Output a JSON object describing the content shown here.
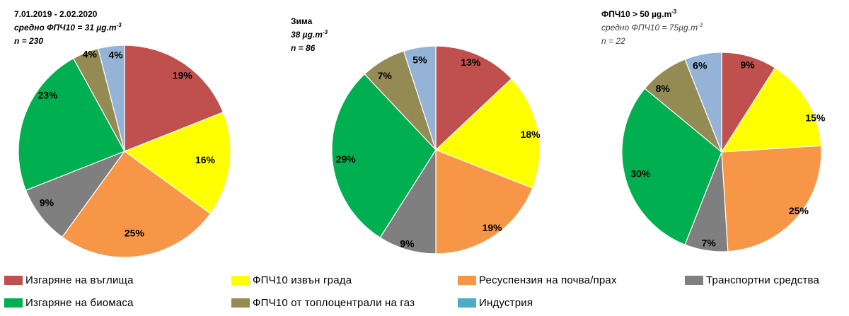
{
  "colors": {
    "coal": "#C0504D",
    "outside_city": "#FFFF00",
    "soil": "#F79646",
    "transport": "#7F7F7F",
    "biomass": "#00B050",
    "gas_heating": "#948A54",
    "industry": "#95B3D7",
    "industry_legend": "#4BACC6"
  },
  "legend": [
    {
      "key": "coal",
      "label": "Изгаряне на въглища"
    },
    {
      "key": "outside_city",
      "label": "ФПЧ10 извън града"
    },
    {
      "key": "soil",
      "label": "Ресуспензия на почва/прах"
    },
    {
      "key": "transport",
      "label": "Транспортни средства"
    },
    {
      "key": "biomass",
      "label": "Изгаряне на биомаса"
    },
    {
      "key": "gas_heating",
      "label": "ФПЧ10 от топлоцентрали на газ"
    },
    {
      "key": "industry_legend",
      "label": "Индустрия"
    }
  ],
  "chart_data": [
    {
      "type": "pie",
      "title_lines": [
        {
          "text": "7.01.2019 - 2.02.2020",
          "style": "bold",
          "sup": ""
        },
        {
          "text": "средно ФПЧ10 = 31 µg.m",
          "style": "bold-italic",
          "sup": "-3"
        },
        {
          "text": "n = 230",
          "style": "bold-italic",
          "sup": ""
        }
      ],
      "slices": [
        {
          "key": "coal",
          "value": 19,
          "label": "19%"
        },
        {
          "key": "outside_city",
          "value": 16,
          "label": "16%"
        },
        {
          "key": "soil",
          "value": 25,
          "label": "25%"
        },
        {
          "key": "transport",
          "value": 9,
          "label": "9%"
        },
        {
          "key": "biomass",
          "value": 23,
          "label": "23%"
        },
        {
          "key": "gas_heating",
          "value": 4,
          "label": "4%"
        },
        {
          "key": "industry",
          "value": 4,
          "label": "4%"
        }
      ]
    },
    {
      "type": "pie",
      "title_lines": [
        {
          "text": "Зима",
          "style": "bold",
          "sup": ""
        },
        {
          "text": "38 µg.m",
          "style": "bold-italic",
          "sup": "-3"
        },
        {
          "text": "n = 86",
          "style": "bold-italic",
          "sup": ""
        }
      ],
      "slices": [
        {
          "key": "coal",
          "value": 13,
          "label": "13%"
        },
        {
          "key": "outside_city",
          "value": 18,
          "label": "18%"
        },
        {
          "key": "soil",
          "value": 19,
          "label": "19%"
        },
        {
          "key": "transport",
          "value": 9,
          "label": "9%"
        },
        {
          "key": "biomass",
          "value": 29,
          "label": "29%"
        },
        {
          "key": "gas_heating",
          "value": 7,
          "label": "7%"
        },
        {
          "key": "industry",
          "value": 5,
          "label": "5%"
        }
      ]
    },
    {
      "type": "pie",
      "title_lines": [
        {
          "text": "ФПЧ10 > 50 µg.m",
          "style": "bold",
          "sup": "-3"
        },
        {
          "text": "средно ФПЧ10 = 75µg.m",
          "style": "gray-italic",
          "sup": "-3"
        },
        {
          "text": "n = 22",
          "style": "gray-italic",
          "sup": ""
        }
      ],
      "slices": [
        {
          "key": "coal",
          "value": 9,
          "label": "9%"
        },
        {
          "key": "outside_city",
          "value": 15,
          "label": "15%"
        },
        {
          "key": "soil",
          "value": 25,
          "label": "25%"
        },
        {
          "key": "transport",
          "value": 7,
          "label": "7%"
        },
        {
          "key": "biomass",
          "value": 30,
          "label": "30%"
        },
        {
          "key": "gas_heating",
          "value": 8,
          "label": "8%"
        },
        {
          "key": "industry",
          "value": 6,
          "label": "6%"
        }
      ]
    }
  ]
}
